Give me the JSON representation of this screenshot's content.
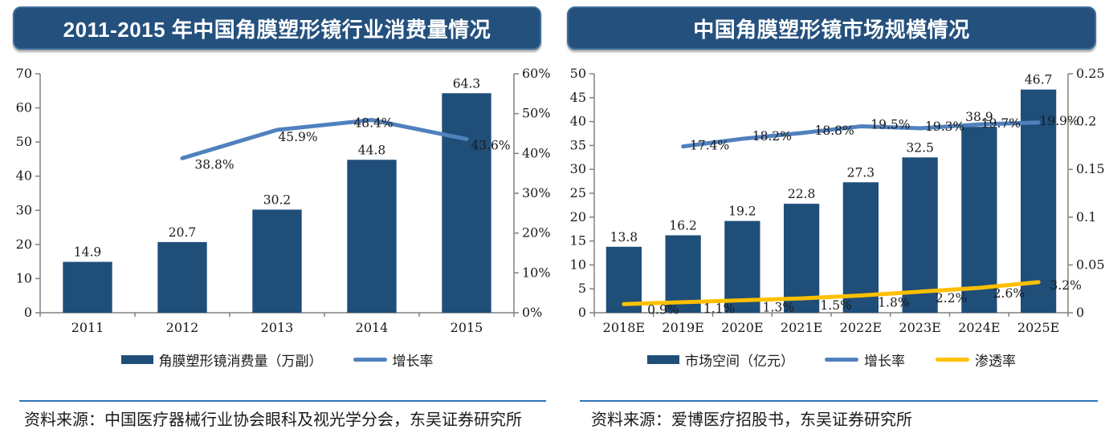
{
  "colors": {
    "title_bar": "#24507E",
    "title_text": "#FFFFFF",
    "bar": "#1F4E79",
    "growth_line": "#4F81BD",
    "penetration_line": "#FFC000",
    "axis": "#808080",
    "text": "#1A1A1A",
    "source_rule": "#2E74B5"
  },
  "panels": [
    {
      "title": "2011-2015 年中国角膜塑形镜行业消费量情况",
      "source": "资料来源：中国医疗器械行业协会眼科及视光学分会，东吴证券研究所"
    },
    {
      "title": "中国角膜塑形镜市场规模情况",
      "source": "资料来源：爱博医疗招股书，东吴证券研究所"
    }
  ],
  "chart_data": [
    {
      "type": "bar",
      "title": "2011-2015 年中国角膜塑形镜行业消费量情况",
      "categories": [
        "2011",
        "2012",
        "2013",
        "2014",
        "2015"
      ],
      "series": [
        {
          "name": "角膜塑形镜消费量（万副）",
          "type": "bar",
          "axis": "left",
          "color": "#1F4E79",
          "values": [
            14.9,
            20.7,
            30.2,
            44.8,
            64.3
          ],
          "labels": [
            "14.9",
            "20.7",
            "30.2",
            "44.8",
            "64.3"
          ]
        },
        {
          "name": "增长率",
          "type": "line",
          "axis": "right",
          "color": "#4F81BD",
          "values": [
            null,
            38.8,
            45.9,
            48.4,
            43.6
          ],
          "labels": [
            null,
            "38.8%",
            "45.9%",
            "48.4%",
            "43.6%"
          ]
        }
      ],
      "left_axis": {
        "min": 0,
        "max": 70,
        "step": 10,
        "ticks": [
          "0",
          "10",
          "20",
          "30",
          "40",
          "50",
          "60",
          "70"
        ]
      },
      "right_axis": {
        "min": 0,
        "max": 60,
        "step": 10,
        "ticks": [
          "0%",
          "10%",
          "20%",
          "30%",
          "40%",
          "50%",
          "60%"
        ]
      },
      "grid": false,
      "legend_position": "bottom"
    },
    {
      "type": "bar",
      "title": "中国角膜塑形镜市场规模情况",
      "categories": [
        "2018E",
        "2019E",
        "2020E",
        "2021E",
        "2022E",
        "2023E",
        "2024E",
        "2025E"
      ],
      "series": [
        {
          "name": "市场空间（亿元）",
          "type": "bar",
          "axis": "left",
          "color": "#1F4E79",
          "values": [
            13.8,
            16.2,
            19.2,
            22.8,
            27.3,
            32.5,
            38.9,
            46.7
          ],
          "labels": [
            "13.8",
            "16.2",
            "19.2",
            "22.8",
            "27.3",
            "32.5",
            "38.9",
            "46.7"
          ]
        },
        {
          "name": "增长率",
          "type": "line",
          "axis": "right",
          "color": "#4F81BD",
          "values": [
            null,
            0.174,
            0.182,
            0.188,
            0.195,
            0.193,
            0.197,
            0.199
          ],
          "labels": [
            null,
            "17.4%",
            "18.2%",
            "18.8%",
            "19.5%",
            "19.3%",
            "19.7%",
            "19.9%"
          ]
        },
        {
          "name": "渗透率",
          "type": "line",
          "axis": "right",
          "color": "#FFC000",
          "values": [
            0.009,
            0.011,
            0.013,
            0.015,
            0.018,
            0.022,
            0.026,
            0.032
          ],
          "labels": [
            "0.9%",
            "1.1%",
            "1.3%",
            "1.5%",
            "1.8%",
            "2.2%",
            "2.6%",
            "3.2%"
          ]
        }
      ],
      "left_axis": {
        "min": 0,
        "max": 50,
        "step": 5,
        "ticks": [
          "0",
          "5",
          "10",
          "15",
          "20",
          "25",
          "30",
          "35",
          "40",
          "45",
          "50"
        ]
      },
      "right_axis": {
        "min": 0,
        "max": 0.25,
        "step": 0.05,
        "ticks": [
          "0",
          "0.05",
          "0.1",
          "0.15",
          "0.2",
          "0.25"
        ]
      },
      "grid": false,
      "legend_position": "bottom"
    }
  ]
}
